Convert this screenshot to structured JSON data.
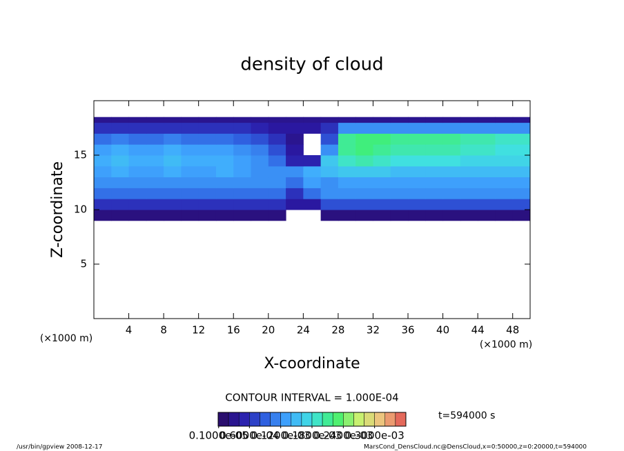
{
  "chart_data": {
    "type": "heatmap",
    "title": "density of cloud",
    "xlabel": "X-coordinate",
    "ylabel": "Z-coordinate",
    "x_unit": "(×1000 m)",
    "y_unit": "(×1000 m)",
    "xlim": [
      0,
      50
    ],
    "ylim": [
      0,
      20
    ],
    "xticks": [
      4,
      8,
      12,
      16,
      20,
      24,
      28,
      32,
      36,
      40,
      44,
      48
    ],
    "yticks": [
      5,
      10,
      15
    ],
    "xbins": [
      0,
      2,
      4,
      6,
      8,
      10,
      12,
      14,
      16,
      18,
      20,
      22,
      24,
      26,
      28,
      30,
      32,
      34,
      36,
      38,
      40,
      42,
      44,
      46,
      48,
      50
    ],
    "ybins": [
      9,
      10,
      11,
      12,
      13,
      14,
      15,
      16,
      17,
      18,
      18.5
    ],
    "values": [
      [
        2e-05,
        2e-05,
        2e-05,
        2e-05,
        2e-05,
        2e-05,
        2e-05,
        2e-05,
        2e-05,
        2e-05,
        2e-05,
        null,
        null,
        2e-05,
        2e-05,
        2e-05,
        2e-05,
        2e-05,
        2e-05,
        2e-05,
        2e-05,
        2e-05,
        2e-05,
        2e-05,
        2e-05
      ],
      [
        6e-05,
        6e-05,
        6e-05,
        6e-05,
        6e-05,
        6e-05,
        6e-05,
        6e-05,
        6e-05,
        6e-05,
        6e-05,
        4e-05,
        4e-05,
        8e-05,
        8e-05,
        8e-05,
        8e-05,
        8e-05,
        8e-05,
        8e-05,
        8e-05,
        8e-05,
        8e-05,
        8e-05,
        8e-05
      ],
      [
        0.0001,
        0.0001,
        0.0001,
        0.0001,
        0.0001,
        0.0001,
        0.0001,
        0.0001,
        0.0001,
        0.0001,
        0.0001,
        6e-05,
        0.0001,
        0.00012,
        0.00012,
        0.00012,
        0.00012,
        0.00012,
        0.00012,
        0.00012,
        0.00012,
        0.00012,
        0.00012,
        0.00012,
        0.00012
      ],
      [
        0.00012,
        0.00012,
        0.00012,
        0.00012,
        0.00012,
        0.00012,
        0.00012,
        0.00012,
        0.00012,
        0.00012,
        0.00012,
        0.0001,
        0.00013,
        0.00012,
        0.00013,
        0.00013,
        0.00013,
        0.00013,
        0.00013,
        0.00013,
        0.00013,
        0.00013,
        0.00013,
        0.00013,
        0.00013
      ],
      [
        0.00013,
        0.00014,
        0.00013,
        0.00013,
        0.00014,
        0.00013,
        0.00013,
        0.00014,
        0.00013,
        0.00012,
        0.00012,
        0.00012,
        0.00014,
        0.00015,
        0.00016,
        0.00016,
        0.00016,
        0.00015,
        0.00015,
        0.00015,
        0.00015,
        0.00015,
        0.00015,
        0.00015,
        0.00015
      ],
      [
        0.00014,
        0.00015,
        0.00014,
        0.00014,
        0.00015,
        0.00014,
        0.00014,
        0.00014,
        0.00013,
        0.00012,
        0.0001,
        5e-05,
        5e-05,
        0.00016,
        0.00019,
        0.0002,
        0.00019,
        0.00018,
        0.00018,
        0.00018,
        0.00018,
        0.00017,
        0.00017,
        0.00017,
        0.00017
      ],
      [
        0.00013,
        0.00014,
        0.00013,
        0.00013,
        0.00014,
        0.00013,
        0.00013,
        0.00013,
        0.00012,
        0.00011,
        8e-05,
        4e-05,
        null,
        0.00012,
        0.00021,
        0.00022,
        0.00021,
        0.0002,
        0.0002,
        0.0002,
        0.0002,
        0.00019,
        0.00019,
        0.00018,
        0.00018
      ],
      [
        0.0001,
        0.00011,
        0.0001,
        0.0001,
        0.00011,
        0.0001,
        0.0001,
        0.0001,
        9e-05,
        8e-05,
        6e-05,
        3e-05,
        null,
        8e-05,
        0.00021,
        0.00022,
        0.00022,
        0.00021,
        0.00021,
        0.00021,
        0.00021,
        0.0002,
        0.0002,
        0.00019,
        0.00019
      ],
      [
        6e-05,
        6e-05,
        6e-05,
        6e-05,
        6e-05,
        6e-05,
        6e-05,
        6e-05,
        6e-05,
        5e-05,
        4e-05,
        4e-05,
        4e-05,
        6e-05,
        0.00012,
        0.00012,
        0.00012,
        0.00012,
        0.00012,
        0.00012,
        0.00012,
        0.00012,
        0.00012,
        0.00012,
        0.00012
      ],
      [
        3e-05,
        3e-05,
        3e-05,
        3e-05,
        3e-05,
        3e-05,
        3e-05,
        3e-05,
        3e-05,
        3e-05,
        3e-05,
        3e-05,
        3e-05,
        3e-05,
        3e-05,
        3e-05,
        3e-05,
        3e-05,
        3e-05,
        3e-05,
        3e-05,
        3e-05,
        3e-05,
        3e-05,
        3e-05
      ]
    ],
    "palette": [
      "#2a0a5e",
      "#2a1aa8",
      "#2f60e0",
      "#40a8ff",
      "#40e0e0",
      "#40f070",
      "#c8f070",
      "#f0c080",
      "#e05050"
    ],
    "levels": [
      0,
      2e-05,
      4e-05,
      6e-05,
      8e-05,
      0.0001,
      0.00012,
      0.00014,
      0.00016,
      0.00018,
      0.0002,
      0.00022,
      0.00024,
      0.00026,
      0.00028,
      0.0003,
      0.00032,
      0.00034,
      0.00036
    ],
    "colorbar_ticks": [
      {
        "value": 1e-06,
        "label": "0.1000e-05"
      },
      {
        "value": 6e-05,
        "label": "0.6000e-04"
      },
      {
        "value": 0.00012,
        "label": "0.1200e-03"
      },
      {
        "value": 0.00018,
        "label": "0.1800e-03"
      },
      {
        "value": 0.00024,
        "label": "0.2400e-03"
      },
      {
        "value": 0.0003,
        "label": "0.3000e-03"
      }
    ],
    "contour_interval": "CONTOUR INTERVAL = 1.000E-04",
    "time_label": "t=594000 s",
    "footer_left": "/usr/bin/gpview   2008-12-17",
    "footer_right": "MarsCond_DensCloud.nc@DensCloud,x=0:50000,z=0:20000,t=594000"
  }
}
